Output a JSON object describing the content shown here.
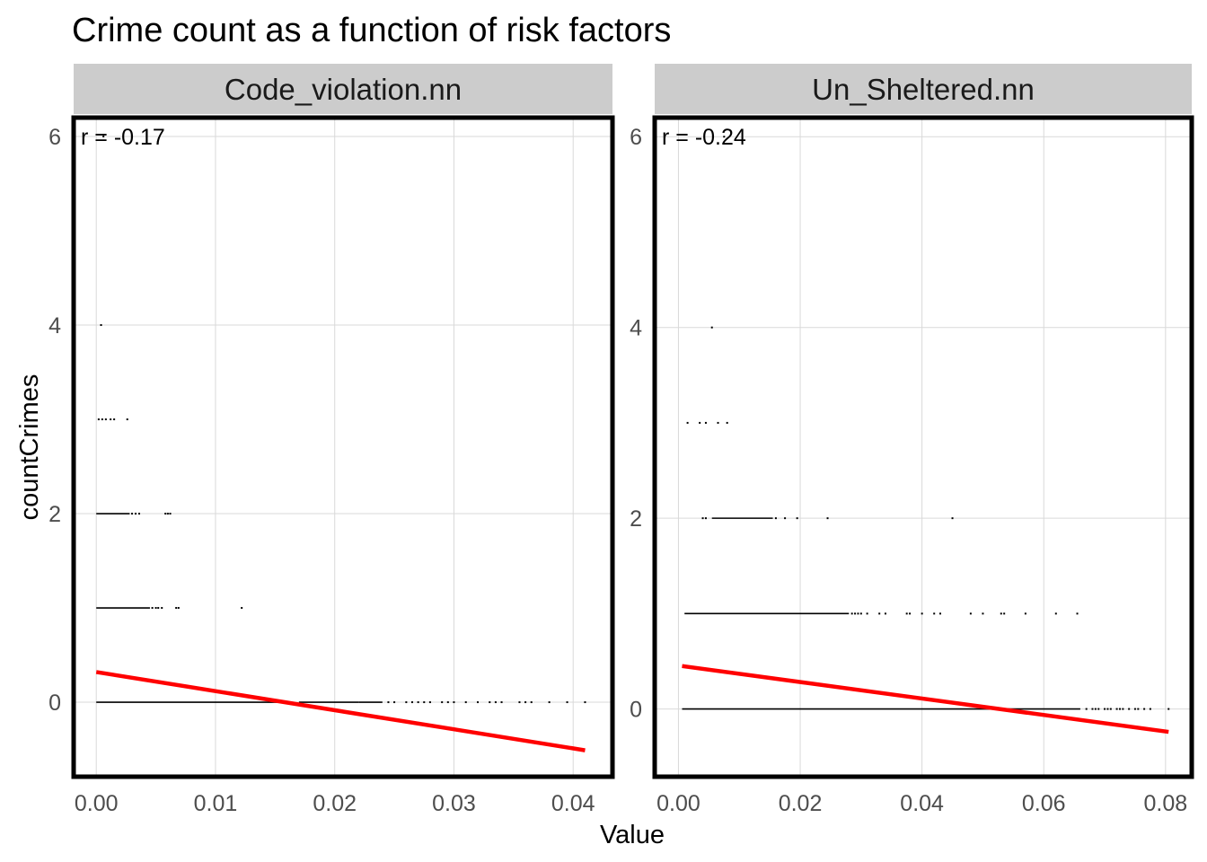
{
  "chart_data": {
    "type": "scatter",
    "title": "Crime count as a function of risk factors",
    "xlabel": "Value",
    "ylabel": "countCrimes",
    "colors": {
      "points": "#000000",
      "fit_line": "#ff0000",
      "strip": "#cccccc",
      "panel_border": "#000000",
      "grid": "#d9d9d9"
    },
    "panels": [
      {
        "name": "Code_violation.nn",
        "annotation": "r = -0.17",
        "xlim": [
          -0.0019,
          0.0433
        ],
        "ylim": [
          -0.79,
          6.2
        ],
        "x_ticks": [
          0.0,
          0.01,
          0.02,
          0.03,
          0.04
        ],
        "x_tick_labels": [
          "0.00",
          "0.01",
          "0.02",
          "0.03",
          "0.04"
        ],
        "y_ticks": [
          0,
          2,
          4,
          6
        ],
        "y_tick_labels": [
          "0",
          "2",
          "4",
          "6"
        ],
        "fit": {
          "x": [
            0.0,
            0.041
          ],
          "y": [
            0.32,
            -0.51
          ]
        },
        "points": [
          {
            "y": 0,
            "x": [
              [
                0.0,
                0.016
              ],
              [
                0.017,
                0.022
              ],
              [
                0.022,
                0.024
              ]
            ],
            "xs": [
              0.0245,
              0.025,
              0.026,
              0.0265,
              0.027,
              0.0275,
              0.028,
              0.029,
              0.0295,
              0.03,
              0.031,
              0.032,
              0.033,
              0.0335,
              0.034,
              0.0355,
              0.036,
              0.0365,
              0.038,
              0.0395,
              0.041
            ]
          },
          {
            "y": 1,
            "x": [
              [
                0.0,
                0.0045
              ]
            ],
            "xs": [
              0.0047,
              0.005,
              0.0052,
              0.0055,
              0.0067,
              0.0069,
              0.0122
            ]
          },
          {
            "y": 2,
            "x": [
              [
                0.0,
                0.0028
              ]
            ],
            "xs": [
              0.003,
              0.0033,
              0.0036,
              0.0058,
              0.006,
              0.0062
            ]
          },
          {
            "y": 3,
            "x": [],
            "xs": [
              0.0002,
              0.0005,
              0.0008,
              0.0012,
              0.0015,
              0.0026
            ]
          },
          {
            "y": 4,
            "x": [],
            "xs": [
              0.0004
            ]
          },
          {
            "y": 6,
            "x": [],
            "xs": [
              0.0006
            ]
          }
        ]
      },
      {
        "name": "Un_Sheltered.nn",
        "annotation": "r = -0.24",
        "xlim": [
          -0.0039,
          0.0843
        ],
        "ylim": [
          -0.71,
          6.2
        ],
        "x_ticks": [
          0.0,
          0.02,
          0.04,
          0.06,
          0.08
        ],
        "x_tick_labels": [
          "0.00",
          "0.02",
          "0.04",
          "0.06",
          "0.08"
        ],
        "y_ticks": [
          0,
          2,
          4,
          6
        ],
        "y_tick_labels": [
          "0",
          "2",
          "4",
          "6"
        ],
        "fit": {
          "x": [
            0.0006,
            0.0805
          ],
          "y": [
            0.45,
            -0.24
          ]
        },
        "points": [
          {
            "y": 0,
            "x": [
              [
                0.0006,
                0.066
              ]
            ],
            "xs": [
              0.067,
              0.068,
              0.0685,
              0.069,
              0.07,
              0.0705,
              0.071,
              0.072,
              0.0725,
              0.073,
              0.074,
              0.075,
              0.0755,
              0.0765,
              0.0775,
              0.0805
            ]
          },
          {
            "y": 1,
            "x": [
              [
                0.001,
                0.028
              ]
            ],
            "xs": [
              0.0285,
              0.029,
              0.0295,
              0.03,
              0.031,
              0.033,
              0.034,
              0.0375,
              0.038,
              0.04,
              0.042,
              0.043,
              0.048,
              0.05,
              0.053,
              0.0535,
              0.057,
              0.062,
              0.0655
            ]
          },
          {
            "y": 2,
            "x": [
              [
                0.0055,
                0.0155
              ]
            ],
            "xs": [
              0.004,
              0.0045,
              0.016,
              0.0175,
              0.0195,
              0.0245,
              0.045
            ]
          },
          {
            "y": 3,
            "x": [],
            "xs": [
              0.0015,
              0.0035,
              0.0045,
              0.0065,
              0.008
            ]
          },
          {
            "y": 4,
            "x": [],
            "xs": [
              0.0055
            ]
          },
          {
            "y": 6,
            "x": [],
            "xs": [
              0.0075
            ]
          }
        ]
      }
    ]
  }
}
